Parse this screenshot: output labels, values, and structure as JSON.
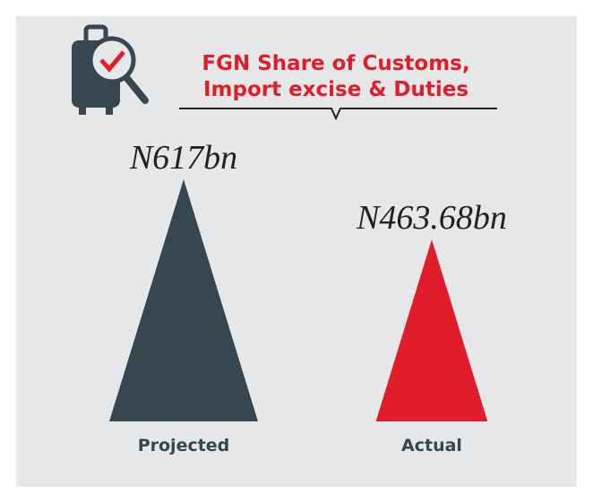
{
  "chart_data": {
    "type": "bar",
    "title": [
      "FGN Share of Customs,",
      "Import excise & Duties"
    ],
    "categories": [
      "Projected",
      "Actual"
    ],
    "series": [
      {
        "name": null,
        "colors": [
          "#37474f",
          "#e01e2b"
        ],
        "values": [
          617,
          463.68
        ],
        "value_labels": [
          "N617bn",
          "N463.68bn"
        ]
      }
    ]
  }
}
